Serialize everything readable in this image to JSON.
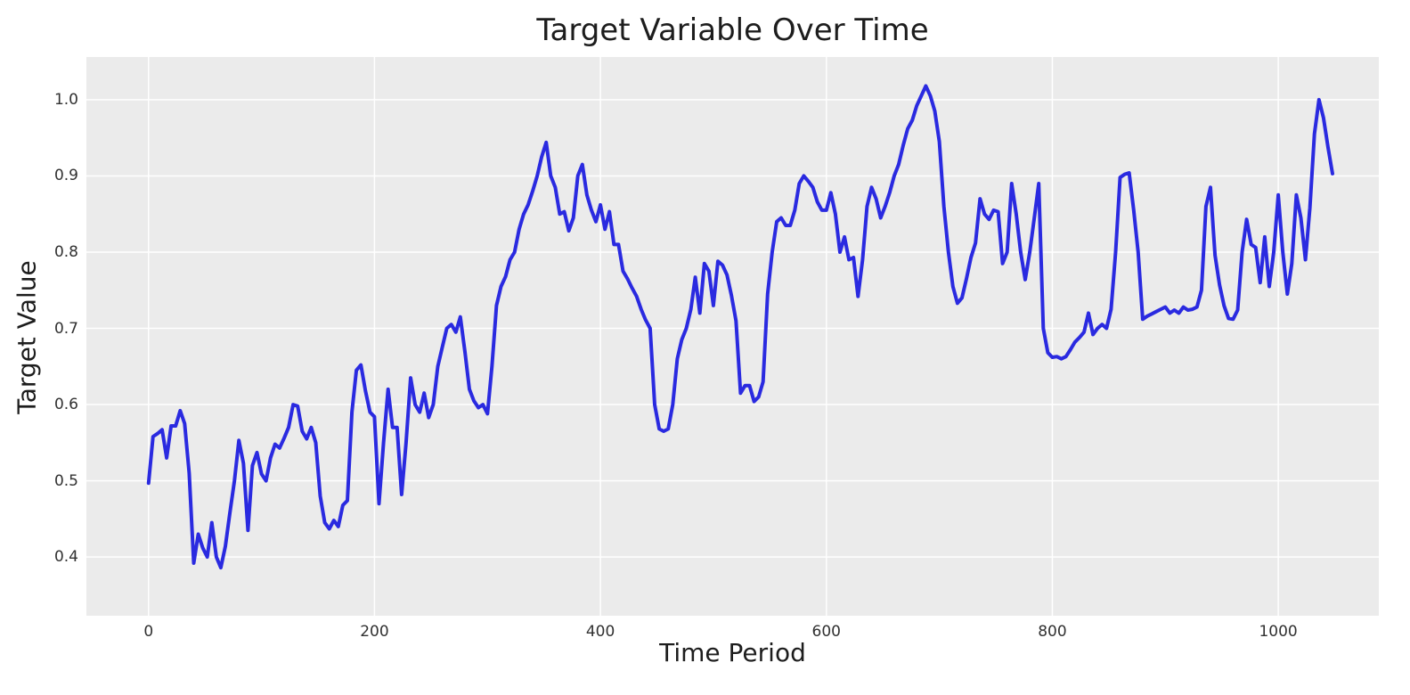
{
  "figure": {
    "title": "Target Variable Over Time",
    "xlabel": "Time Period",
    "ylabel": "Target Value"
  },
  "style": {
    "plot_background": "#ebebeb",
    "grid_color": "#ffffff",
    "line_color": "#2a2ae0",
    "text_color": "#1d1d1d",
    "tick_color": "#313131"
  },
  "chart_data": {
    "type": "line",
    "title": "Target Variable Over Time",
    "xlabel": "Time Period",
    "ylabel": "Target Value",
    "legend": "none",
    "grid": true,
    "x_ticks": [
      0,
      200,
      400,
      600,
      800,
      1000
    ],
    "y_ticks": [
      0.4,
      0.5,
      0.6,
      0.7,
      0.8,
      0.9,
      1.0
    ],
    "xlim": [
      -55,
      1089
    ],
    "ylim": [
      0.323,
      1.056
    ],
    "x_start": 0,
    "x_step": 4,
    "series": [
      {
        "name": "target",
        "color": "#2a2ae0",
        "values": [
          0.497,
          0.558,
          0.562,
          0.567,
          0.53,
          0.572,
          0.572,
          0.592,
          0.575,
          0.51,
          0.392,
          0.43,
          0.412,
          0.4,
          0.445,
          0.4,
          0.386,
          0.414,
          0.458,
          0.5,
          0.553,
          0.523,
          0.435,
          0.52,
          0.537,
          0.509,
          0.5,
          0.53,
          0.548,
          0.543,
          0.556,
          0.57,
          0.6,
          0.598,
          0.565,
          0.555,
          0.57,
          0.55,
          0.48,
          0.445,
          0.437,
          0.448,
          0.44,
          0.468,
          0.474,
          0.59,
          0.645,
          0.652,
          0.618,
          0.59,
          0.584,
          0.47,
          0.55,
          0.62,
          0.57,
          0.57,
          0.482,
          0.55,
          0.635,
          0.6,
          0.59,
          0.615,
          0.583,
          0.6,
          0.65,
          0.675,
          0.7,
          0.705,
          0.695,
          0.715,
          0.67,
          0.62,
          0.605,
          0.596,
          0.6,
          0.588,
          0.65,
          0.73,
          0.755,
          0.768,
          0.79,
          0.8,
          0.83,
          0.85,
          0.862,
          0.88,
          0.9,
          0.925,
          0.944,
          0.9,
          0.885,
          0.85,
          0.853,
          0.828,
          0.845,
          0.9,
          0.915,
          0.875,
          0.855,
          0.84,
          0.862,
          0.83,
          0.853,
          0.81,
          0.81,
          0.775,
          0.765,
          0.753,
          0.742,
          0.725,
          0.711,
          0.7,
          0.6,
          0.568,
          0.565,
          0.568,
          0.6,
          0.66,
          0.685,
          0.7,
          0.725,
          0.767,
          0.72,
          0.785,
          0.775,
          0.73,
          0.788,
          0.783,
          0.77,
          0.743,
          0.71,
          0.615,
          0.625,
          0.625,
          0.604,
          0.61,
          0.63,
          0.745,
          0.8,
          0.84,
          0.845,
          0.835,
          0.835,
          0.855,
          0.89,
          0.9,
          0.893,
          0.885,
          0.866,
          0.855,
          0.855,
          0.878,
          0.85,
          0.8,
          0.82,
          0.79,
          0.793,
          0.742,
          0.79,
          0.86,
          0.885,
          0.87,
          0.845,
          0.86,
          0.878,
          0.9,
          0.915,
          0.94,
          0.962,
          0.973,
          0.992,
          1.005,
          1.018,
          1.005,
          0.985,
          0.945,
          0.86,
          0.8,
          0.755,
          0.733,
          0.74,
          0.765,
          0.793,
          0.812,
          0.87,
          0.85,
          0.843,
          0.855,
          0.853,
          0.785,
          0.8,
          0.89,
          0.85,
          0.8,
          0.764,
          0.8,
          0.845,
          0.89,
          0.7,
          0.668,
          0.662,
          0.663,
          0.66,
          0.663,
          0.672,
          0.682,
          0.688,
          0.695,
          0.72,
          0.692,
          0.7,
          0.705,
          0.7,
          0.725,
          0.8,
          0.898,
          0.902,
          0.904,
          0.855,
          0.8,
          0.712,
          0.716,
          0.719,
          0.722,
          0.725,
          0.728,
          0.72,
          0.724,
          0.72,
          0.728,
          0.724,
          0.725,
          0.728,
          0.75,
          0.86,
          0.885,
          0.796,
          0.757,
          0.73,
          0.713,
          0.712,
          0.724,
          0.8,
          0.843,
          0.81,
          0.806,
          0.76,
          0.82,
          0.755,
          0.8,
          0.875,
          0.8,
          0.745,
          0.785,
          0.875,
          0.845,
          0.79,
          0.858,
          0.955,
          1.0,
          0.976,
          0.938,
          0.903
        ]
      }
    ]
  }
}
